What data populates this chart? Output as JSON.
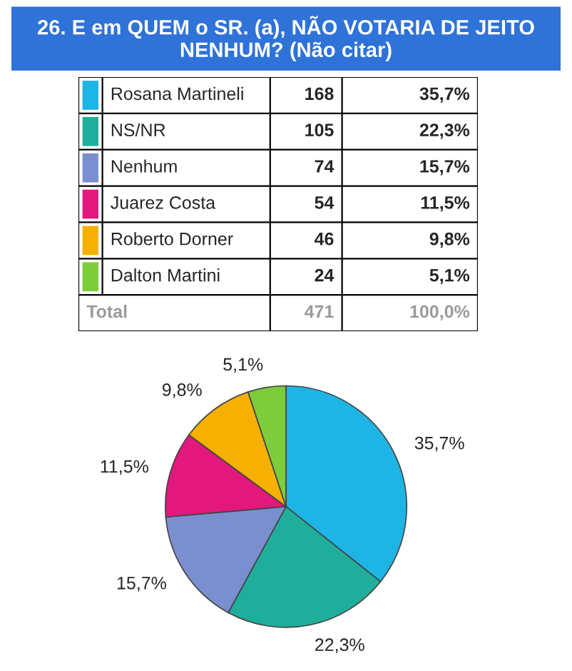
{
  "chart_data": {
    "type": "pie",
    "title": "26. E em QUEM o SR. (a), NÃO VOTARIA DE JEITO NENHUM? (Não citar)",
    "categories": [
      "Rosana Martineli",
      "NS/NR",
      "Nenhum",
      "Juarez Costa",
      "Roberto Dorner",
      "Dalton Martini"
    ],
    "values": [
      35.7,
      22.3,
      15.7,
      11.5,
      9.8,
      5.1
    ],
    "value_labels": [
      "35,7%",
      "22,3%",
      "15,7%",
      "11,5%",
      "9,8%",
      "5,1%"
    ],
    "colors": [
      "#1eb4e6",
      "#1fae9c",
      "#7a8fcf",
      "#e2187c",
      "#f5b000",
      "#7dcc3c"
    ],
    "legend": "top",
    "annotations": [
      "168",
      "105",
      "74",
      "54",
      "46",
      "24",
      "Total",
      "471",
      "100,0%"
    ]
  }
}
